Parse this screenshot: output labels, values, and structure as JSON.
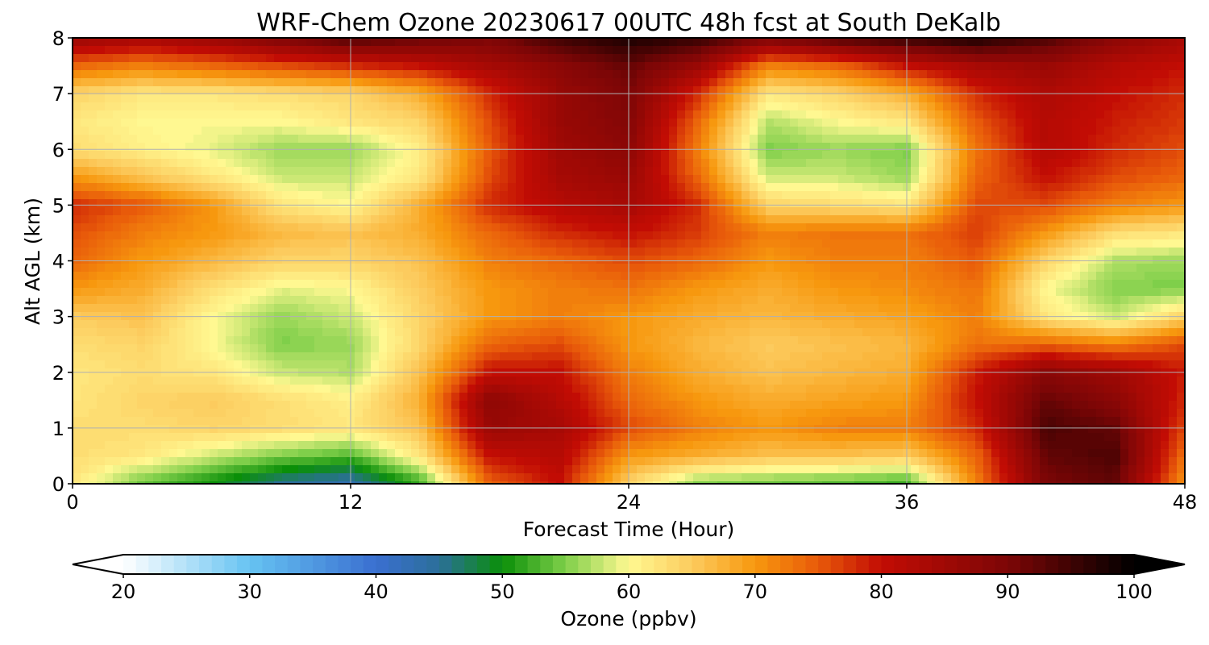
{
  "chart_data": {
    "type": "heatmap",
    "subtype": "filled-contour",
    "title": "WRF-Chem Ozone  20230617 00UTC 48h fcst at South DeKalb",
    "xlabel": "Forecast Time (Hour)",
    "ylabel": "Alt AGL (km)",
    "xlim": [
      0,
      48
    ],
    "ylim": [
      0,
      8
    ],
    "xticks": [
      0,
      12,
      24,
      36,
      48
    ],
    "yticks": [
      0,
      1,
      2,
      3,
      4,
      5,
      6,
      7,
      8
    ],
    "grid": true,
    "x_hours": [
      0,
      3,
      6,
      9,
      12,
      15,
      18,
      21,
      24,
      27,
      30,
      33,
      36,
      39,
      42,
      45,
      48
    ],
    "y_km": [
      0,
      0.5,
      1,
      1.5,
      2,
      2.5,
      3,
      3.5,
      4,
      4.5,
      5,
      5.5,
      6,
      6.5,
      7,
      7.5,
      8
    ],
    "ozone_ppbv": [
      [
        62,
        54,
        50,
        45,
        43,
        52,
        74,
        80,
        64,
        55,
        54,
        53,
        52,
        72,
        90,
        92,
        70
      ],
      [
        63,
        62,
        58,
        55,
        53,
        62,
        80,
        82,
        70,
        68,
        66,
        66,
        65,
        74,
        92,
        94,
        73
      ],
      [
        63,
        63,
        64,
        63,
        62,
        66,
        86,
        84,
        76,
        72,
        70,
        72,
        72,
        78,
        94,
        92,
        76
      ],
      [
        62,
        64,
        65,
        63,
        61,
        68,
        88,
        82,
        74,
        70,
        68,
        69,
        70,
        80,
        92,
        88,
        78
      ],
      [
        62,
        63,
        62,
        58,
        57,
        66,
        80,
        80,
        72,
        68,
        66,
        67,
        68,
        79,
        88,
        85,
        79
      ],
      [
        63,
        64,
        60,
        55,
        56,
        64,
        74,
        76,
        70,
        67,
        65,
        66,
        67,
        73,
        74,
        72,
        76
      ],
      [
        65,
        66,
        60,
        56,
        58,
        64,
        70,
        72,
        70,
        68,
        67,
        68,
        69,
        72,
        62,
        58,
        64
      ],
      [
        70,
        68,
        63,
        59,
        60,
        65,
        70,
        72,
        73,
        70,
        68,
        70,
        71,
        73,
        60,
        55,
        55
      ],
      [
        74,
        70,
        67,
        64,
        64,
        66,
        72,
        74,
        76,
        74,
        70,
        72,
        72,
        75,
        64,
        57,
        56
      ],
      [
        76,
        72,
        70,
        67,
        66,
        68,
        74,
        78,
        80,
        77,
        72,
        73,
        73,
        77,
        70,
        63,
        62
      ],
      [
        78,
        75,
        70,
        62,
        60,
        68,
        78,
        82,
        84,
        78,
        64,
        63,
        62,
        76,
        76,
        72,
        70
      ],
      [
        70,
        66,
        62,
        58,
        58,
        62,
        76,
        84,
        86,
        74,
        58,
        58,
        56,
        74,
        80,
        76,
        74
      ],
      [
        63,
        61,
        59,
        56,
        56,
        61,
        75,
        85,
        88,
        72,
        55,
        56,
        55,
        73,
        82,
        78,
        76
      ],
      [
        62,
        60,
        60,
        60,
        62,
        64,
        76,
        86,
        89,
        74,
        57,
        60,
        62,
        75,
        82,
        79,
        77
      ],
      [
        64,
        62,
        62,
        63,
        64,
        68,
        78,
        86,
        90,
        78,
        62,
        64,
        68,
        78,
        83,
        80,
        78
      ],
      [
        74,
        72,
        74,
        76,
        78,
        80,
        84,
        88,
        92,
        86,
        72,
        74,
        80,
        84,
        86,
        82,
        80
      ],
      [
        86,
        84,
        86,
        90,
        94,
        92,
        90,
        95,
        98,
        96,
        90,
        94,
        96,
        98,
        94,
        88,
        84
      ]
    ],
    "colorbar": {
      "label": "Ozone  (ppbv)",
      "min": 20,
      "max": 100,
      "ticks": [
        20,
        30,
        40,
        50,
        60,
        70,
        80,
        90,
        100
      ],
      "extend": "both",
      "extend_min_color": "#ffffff",
      "extend_max_color": "#000000",
      "colormap": [
        {
          "v": 20,
          "c": "#ffffff"
        },
        {
          "v": 30,
          "c": "#66c3f2"
        },
        {
          "v": 40,
          "c": "#3a6fd0"
        },
        {
          "v": 45,
          "c": "#2b6f9a"
        },
        {
          "v": 50,
          "c": "#0a8f08"
        },
        {
          "v": 55,
          "c": "#7fcf4a"
        },
        {
          "v": 60,
          "c": "#fff891"
        },
        {
          "v": 65,
          "c": "#fccb5e"
        },
        {
          "v": 70,
          "c": "#f7980e"
        },
        {
          "v": 75,
          "c": "#e85a0a"
        },
        {
          "v": 80,
          "c": "#c20c04"
        },
        {
          "v": 90,
          "c": "#7d0606"
        },
        {
          "v": 100,
          "c": "#000000"
        }
      ]
    }
  }
}
